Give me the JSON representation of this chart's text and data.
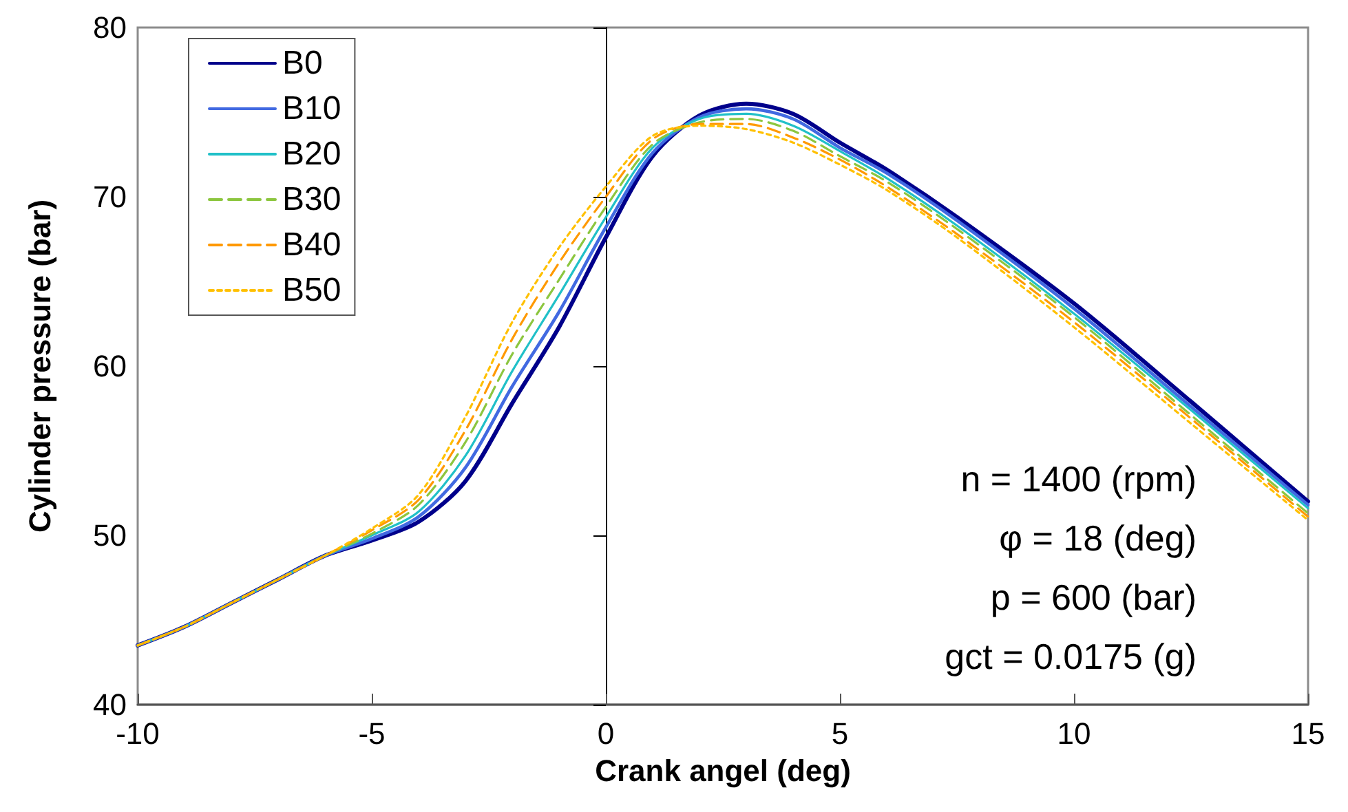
{
  "chart_data": {
    "type": "line",
    "xlabel": "Crank angel (deg)",
    "ylabel": "Cylinder pressure (bar)",
    "x": [
      -10,
      -9,
      -8,
      -7,
      -6,
      -5,
      -4,
      -3,
      -2,
      -1,
      0,
      1,
      2,
      3,
      4,
      5,
      6,
      7.5,
      10,
      12.5,
      15
    ],
    "series": [
      {
        "name": "B0",
        "color": "#00008b",
        "line_style": "solid",
        "values": [
          43.5,
          44.6,
          46.0,
          47.4,
          48.8,
          49.7,
          50.8,
          53.2,
          57.8,
          62.3,
          67.6,
          72.4,
          74.8,
          75.5,
          74.9,
          73.2,
          71.6,
          68.8,
          63.7,
          57.9,
          52.0
        ]
      },
      {
        "name": "B10",
        "color": "#4169e1",
        "line_style": "solid",
        "values": [
          43.5,
          44.6,
          46.0,
          47.4,
          48.8,
          49.8,
          51.1,
          54.0,
          58.8,
          63.2,
          68.2,
          72.6,
          74.7,
          75.2,
          74.6,
          72.9,
          71.4,
          68.6,
          63.4,
          57.6,
          51.8
        ]
      },
      {
        "name": "B20",
        "color": "#20c0c8",
        "line_style": "solid",
        "values": [
          43.5,
          44.6,
          46.0,
          47.4,
          48.8,
          50.0,
          51.4,
          54.7,
          59.7,
          64.2,
          68.8,
          72.9,
          74.6,
          74.9,
          74.2,
          72.7,
          71.1,
          68.3,
          63.1,
          57.4,
          51.6
        ]
      },
      {
        "name": "B30",
        "color": "#8cc63f",
        "line_style": "dashed",
        "values": [
          43.5,
          44.6,
          46.0,
          47.4,
          48.8,
          50.1,
          51.8,
          55.5,
          60.7,
          65.1,
          69.4,
          73.1,
          74.4,
          74.6,
          73.9,
          72.4,
          70.9,
          68.1,
          62.9,
          57.1,
          51.3
        ]
      },
      {
        "name": "B40",
        "color": "#ff9900",
        "line_style": "dashed",
        "values": [
          43.5,
          44.6,
          46.0,
          47.4,
          48.8,
          50.3,
          52.1,
          56.2,
          61.6,
          66.1,
          70.0,
          73.4,
          74.3,
          74.3,
          73.5,
          72.2,
          70.6,
          67.8,
          62.6,
          56.9,
          51.1
        ]
      },
      {
        "name": "B50",
        "color": "#ffc000",
        "line_style": "dotted",
        "values": [
          43.5,
          44.6,
          46.0,
          47.4,
          48.8,
          50.4,
          52.4,
          57.0,
          62.6,
          67.0,
          70.6,
          73.6,
          74.2,
          74.0,
          73.2,
          71.9,
          70.4,
          67.6,
          62.3,
          56.6,
          50.9
        ]
      }
    ],
    "xlim": [
      -10,
      15
    ],
    "xticks": [
      -10,
      -5,
      0,
      5,
      10,
      15
    ],
    "ylim": [
      40,
      80
    ],
    "yticks": [
      40,
      50,
      60,
      70,
      80
    ],
    "legend": "top left",
    "marker": "none",
    "annotations": [
      "n = 1400 (rpm)",
      "φ = 18 (deg)",
      "p = 600 (bar)",
      "gct = 0.0175 (g)"
    ]
  }
}
